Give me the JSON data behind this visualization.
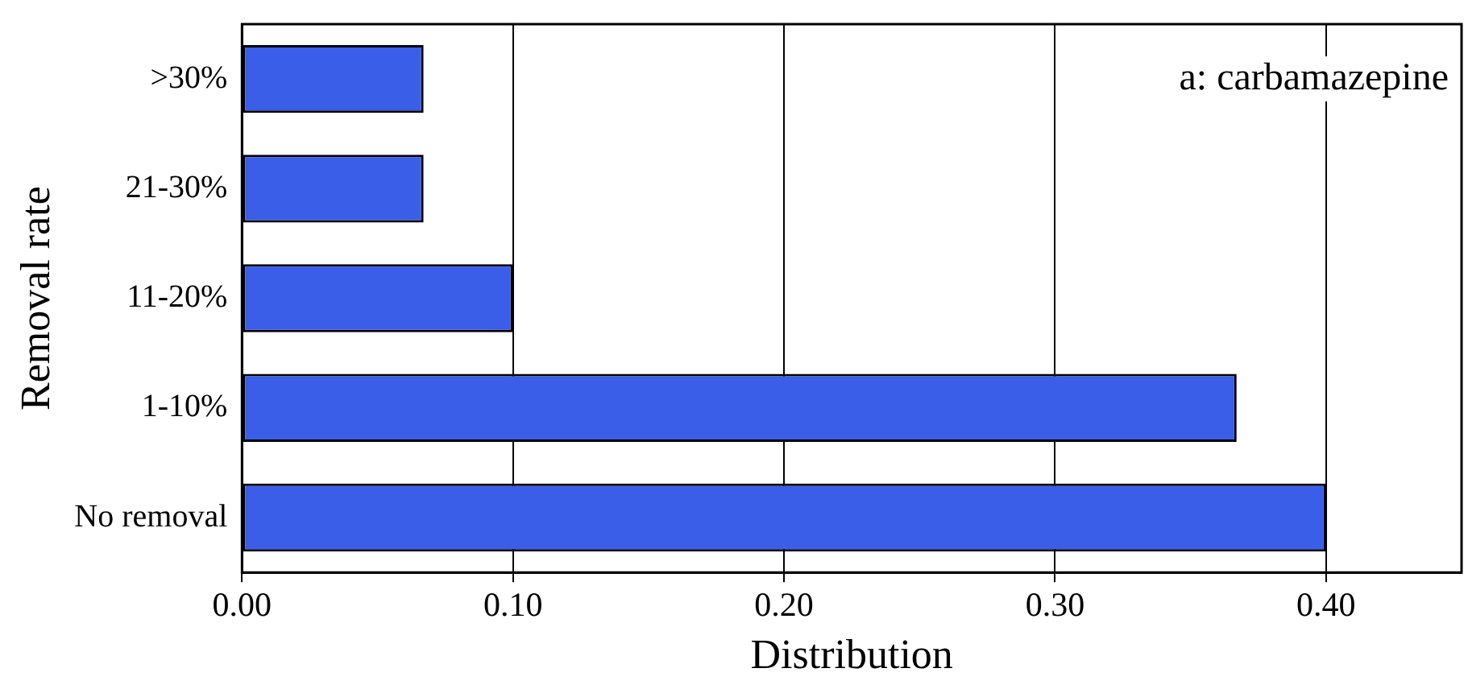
{
  "chart_data": {
    "type": "bar",
    "orientation": "horizontal",
    "xlabel": "Distribution",
    "ylabel": "Removal rate",
    "annotations": [
      "a: carbamazepine"
    ],
    "categories": [
      ">30%",
      "21-30%",
      "11-20%",
      "1-10%",
      "No removal"
    ],
    "values": [
      0.067,
      0.067,
      0.1,
      0.367,
      0.4
    ],
    "color": "#3a5ee8",
    "xlim": [
      0,
      0.45
    ],
    "xticks": [
      {
        "value": 0,
        "label": "0.00"
      },
      {
        "value": 0.1,
        "label": "0.10"
      },
      {
        "value": 0.2,
        "label": "0.20"
      },
      {
        "value": 0.3,
        "label": "0.30"
      },
      {
        "value": 0.4,
        "label": "0.40"
      }
    ],
    "grid": "x",
    "legend": false
  }
}
